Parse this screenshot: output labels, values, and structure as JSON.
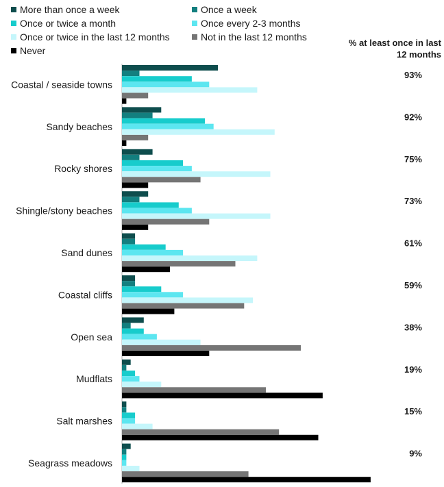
{
  "chart_data": {
    "type": "bar",
    "orientation": "horizontal",
    "categories": [
      "Coastal / seaside towns",
      "Sandy beaches",
      "Rocky shores",
      "Shingle/stony beaches",
      "Sand dunes",
      "Coastal cliffs",
      "Open sea",
      "Mudflats",
      "Salt marshes",
      "Seagrass meadows"
    ],
    "series": [
      {
        "name": "More than once a week",
        "color": "#0e4d4d",
        "values": [
          22,
          9,
          7,
          6,
          3,
          3,
          5,
          2,
          1,
          2
        ]
      },
      {
        "name": "Once a week",
        "color": "#137f7f",
        "values": [
          4,
          7,
          4,
          4,
          3,
          3,
          2,
          1,
          1,
          1
        ]
      },
      {
        "name": "Once or twice a month",
        "color": "#17cccc",
        "values": [
          16,
          19,
          14,
          13,
          10,
          9,
          5,
          3,
          3,
          1
        ]
      },
      {
        "name": "Once every 2-3 months",
        "color": "#5ce6f0",
        "values": [
          20,
          21,
          16,
          16,
          14,
          14,
          8,
          4,
          3,
          1
        ]
      },
      {
        "name": "Once or twice in the last 12 months",
        "color": "#c5f6fb",
        "values": [
          31,
          35,
          34,
          34,
          31,
          30,
          18,
          9,
          7,
          4
        ]
      },
      {
        "name": "Not in the last 12 months",
        "color": "#757575",
        "values": [
          6,
          6,
          18,
          20,
          26,
          28,
          41,
          33,
          36,
          29
        ]
      },
      {
        "name": "Never",
        "color": "#000000",
        "values": [
          1,
          1,
          6,
          6,
          11,
          12,
          20,
          46,
          45,
          57
        ]
      }
    ],
    "pct_header": "% at least once in last 12 months",
    "pct_values": [
      "93%",
      "92%",
      "75%",
      "73%",
      "61%",
      "59%",
      "38%",
      "19%",
      "15%",
      "9%"
    ],
    "xlim": [
      0,
      60
    ],
    "grid": false,
    "legend_position": "top"
  }
}
